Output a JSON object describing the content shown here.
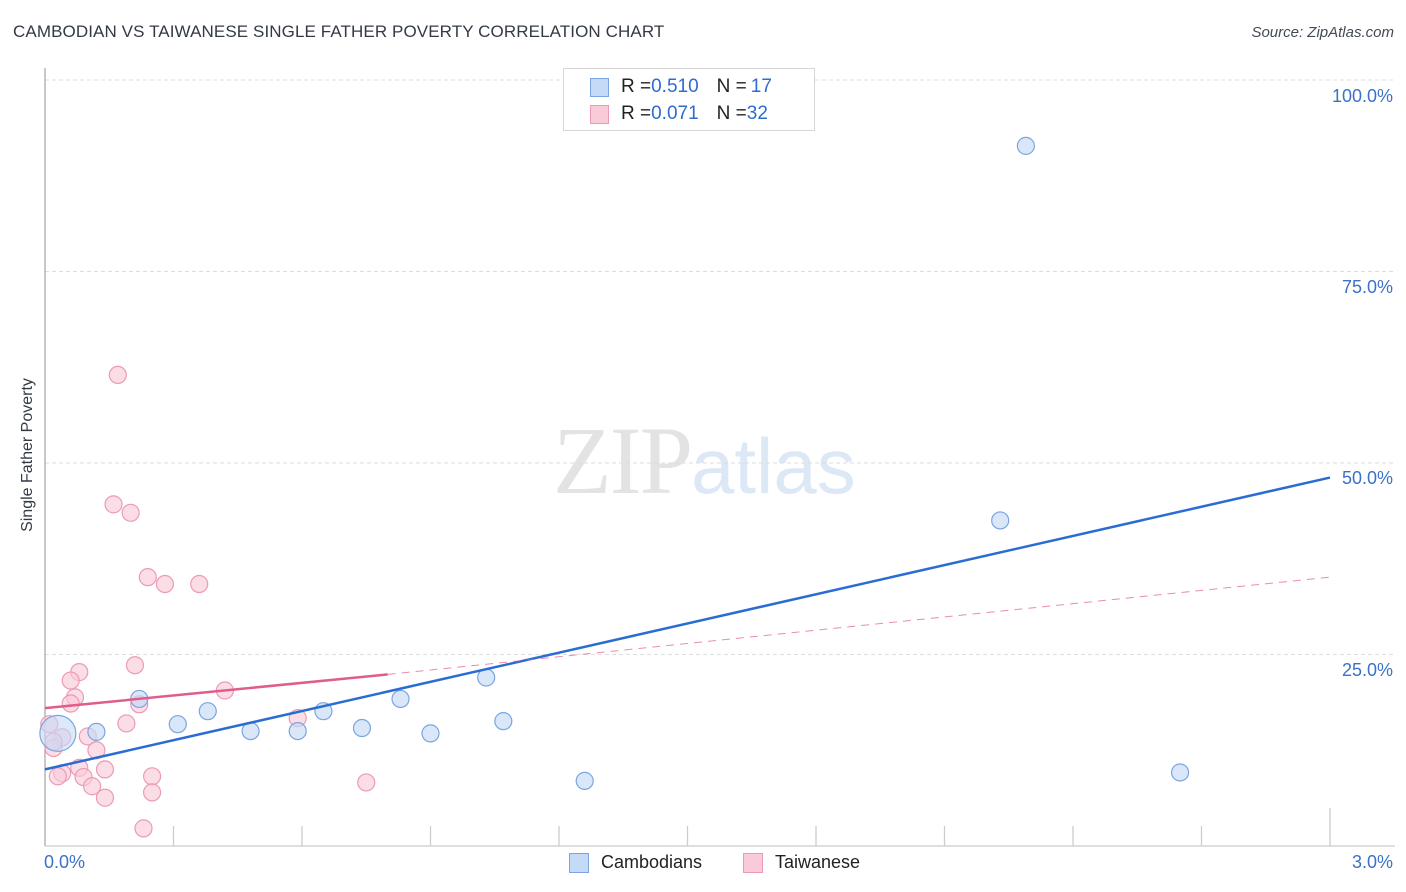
{
  "header": {
    "title": "CAMBODIAN VS TAIWANESE SINGLE FATHER POVERTY CORRELATION CHART",
    "source": "Source: ZipAtlas.com"
  },
  "watermark": {
    "zip": "ZIP",
    "atlas": "atlas"
  },
  "colors": {
    "cambodian_fill": "#c5daf6",
    "cambodian_stroke": "#7aa5e0",
    "cambodian_line": "#2a6dd2",
    "taiwanese_fill": "#f9cbd9",
    "taiwanese_stroke": "#ec9ab6",
    "taiwanese_line": "#e05c8a",
    "tick_label": "#3b72c8",
    "grid": "#dddddd"
  },
  "legend": {
    "rows": [
      {
        "r_label": "R = ",
        "r_value": "0.510",
        "n_label": "N = ",
        "n_value": "17"
      },
      {
        "r_label": "R = ",
        "r_value": "0.071",
        "n_label": "N = ",
        "n_value": "32"
      }
    ],
    "bottom": [
      {
        "label": "Cambodians"
      },
      {
        "label": "Taiwanese"
      }
    ]
  },
  "axes": {
    "ylabel": "Single Father Poverty",
    "yticks": [
      "100.0%",
      "75.0%",
      "50.0%",
      "25.0%"
    ],
    "xticks": [
      "0.0%",
      "3.0%"
    ]
  },
  "chart_data": {
    "type": "scatter",
    "title": "CAMBODIAN VS TAIWANESE SINGLE FATHER POVERTY CORRELATION CHART",
    "xlabel": "",
    "ylabel": "Single Father Poverty",
    "xlim": [
      0,
      3.0
    ],
    "ylim": [
      0,
      100
    ],
    "x_unit": "%",
    "y_unit": "%",
    "grid": true,
    "legend_position": "top-center and bottom",
    "series": [
      {
        "name": "Cambodians",
        "R": 0.51,
        "N": 17,
        "trend": {
          "x": [
            0,
            3.0
          ],
          "y": [
            10.0,
            48.1
          ],
          "style": "solid"
        },
        "points": [
          {
            "x": 0.03,
            "y": 14.7,
            "size": "large"
          },
          {
            "x": 0.12,
            "y": 14.9
          },
          {
            "x": 0.22,
            "y": 19.2
          },
          {
            "x": 0.31,
            "y": 15.9
          },
          {
            "x": 0.38,
            "y": 17.6
          },
          {
            "x": 0.48,
            "y": 15.0
          },
          {
            "x": 0.59,
            "y": 15.0
          },
          {
            "x": 0.65,
            "y": 17.6
          },
          {
            "x": 0.74,
            "y": 15.4
          },
          {
            "x": 0.83,
            "y": 19.2
          },
          {
            "x": 0.9,
            "y": 14.7
          },
          {
            "x": 1.03,
            "y": 22.0
          },
          {
            "x": 1.07,
            "y": 16.3
          },
          {
            "x": 1.26,
            "y": 8.5
          },
          {
            "x": 2.23,
            "y": 42.5
          },
          {
            "x": 2.29,
            "y": 91.4
          },
          {
            "x": 2.65,
            "y": 9.6
          }
        ]
      },
      {
        "name": "Taiwanese",
        "R": 0.071,
        "N": 32,
        "trend": {
          "x": [
            0,
            0.8,
            3.0
          ],
          "y": [
            18.0,
            22.4,
            35.1
          ],
          "style": "solid to 0.8 then dashed"
        },
        "points": [
          {
            "x": 0.17,
            "y": 61.5
          },
          {
            "x": 0.16,
            "y": 44.6
          },
          {
            "x": 0.2,
            "y": 43.5
          },
          {
            "x": 0.24,
            "y": 35.1
          },
          {
            "x": 0.28,
            "y": 34.2
          },
          {
            "x": 0.36,
            "y": 34.2
          },
          {
            "x": 0.21,
            "y": 23.6
          },
          {
            "x": 0.08,
            "y": 22.7
          },
          {
            "x": 0.06,
            "y": 21.6
          },
          {
            "x": 0.07,
            "y": 19.4
          },
          {
            "x": 0.06,
            "y": 18.6
          },
          {
            "x": 0.42,
            "y": 20.3
          },
          {
            "x": 0.22,
            "y": 18.5
          },
          {
            "x": 0.59,
            "y": 16.7
          },
          {
            "x": 0.19,
            "y": 16.0
          },
          {
            "x": 0.01,
            "y": 15.9
          },
          {
            "x": 0.04,
            "y": 14.2
          },
          {
            "x": 0.1,
            "y": 14.3
          },
          {
            "x": 0.02,
            "y": 12.8
          },
          {
            "x": 0.02,
            "y": 13.6
          },
          {
            "x": 0.12,
            "y": 12.5
          },
          {
            "x": 0.08,
            "y": 10.2
          },
          {
            "x": 0.14,
            "y": 10.0
          },
          {
            "x": 0.04,
            "y": 9.5
          },
          {
            "x": 0.03,
            "y": 9.1
          },
          {
            "x": 0.09,
            "y": 9.0
          },
          {
            "x": 0.25,
            "y": 9.1
          },
          {
            "x": 0.11,
            "y": 7.8
          },
          {
            "x": 0.25,
            "y": 7.0
          },
          {
            "x": 0.14,
            "y": 6.3
          },
          {
            "x": 0.75,
            "y": 8.3
          },
          {
            "x": 0.23,
            "y": 2.3
          }
        ]
      }
    ],
    "yticks": [
      25,
      50,
      75,
      100
    ],
    "ytick_labels": [
      "25.0%",
      "50.0%",
      "75.0%",
      "100.0%"
    ],
    "xtick_labels": [
      "0.0%",
      "3.0%"
    ]
  }
}
